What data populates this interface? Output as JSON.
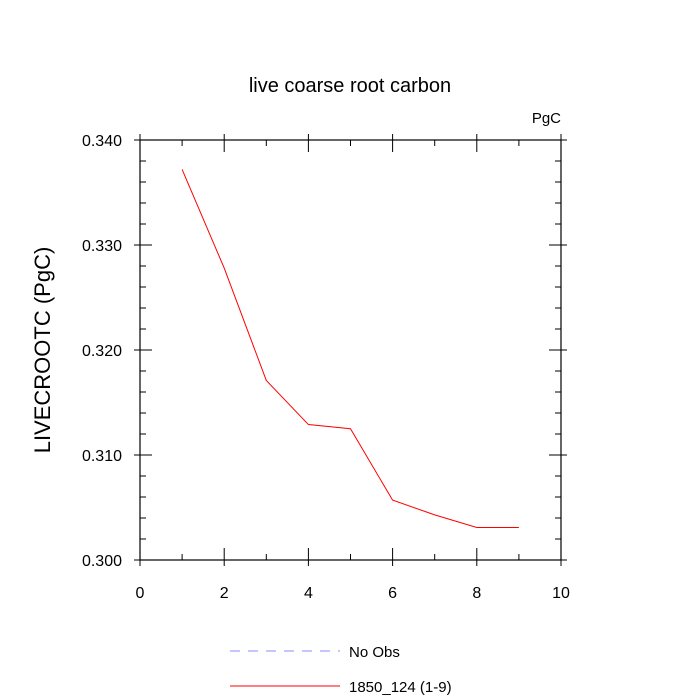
{
  "chart_data": {
    "type": "line",
    "title": "live coarse root carbon",
    "units_label": "PgC",
    "xlabel": "",
    "ylabel": "LIVECROOTC  (PgC)",
    "xlim": [
      0,
      10
    ],
    "ylim": [
      0.3,
      0.34
    ],
    "x_ticks": [
      0,
      2,
      4,
      6,
      8,
      10
    ],
    "x_tick_labels": [
      "0",
      "2",
      "4",
      "6",
      "8",
      "10"
    ],
    "y_ticks": [
      0.3,
      0.31,
      0.32,
      0.33,
      0.34
    ],
    "y_tick_labels": [
      "0.300",
      "0.310",
      "0.320",
      "0.330",
      "0.340"
    ],
    "x_minor_step": 1,
    "y_minor_step": 0.002,
    "series": [
      {
        "name": "1850_124 (1-9)",
        "color": "#ff0000",
        "dash": "solid",
        "x": [
          1,
          2,
          3,
          4,
          5,
          6,
          7,
          8,
          9
        ],
        "values": [
          0.3372,
          0.3278,
          0.3171,
          0.3129,
          0.3125,
          0.3057,
          0.3043,
          0.3031,
          0.3031
        ]
      },
      {
        "name": "No Obs",
        "color": "#8888ff",
        "dash": "dashed",
        "x": [],
        "values": []
      }
    ],
    "legend": [
      {
        "label": "No Obs",
        "color": "#8888ff",
        "dash": "dashed"
      },
      {
        "label": "1850_124 (1-9)",
        "color": "#ff0000",
        "dash": "solid"
      }
    ],
    "legend_position": "bottom-center"
  }
}
